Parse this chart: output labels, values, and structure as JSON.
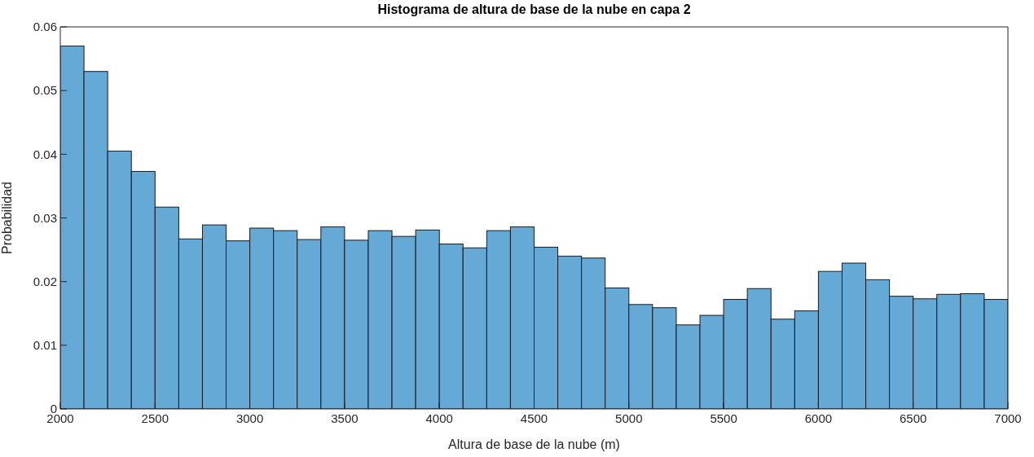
{
  "chart_data": {
    "type": "histogram",
    "title": "Histograma de altura de base de la nube en capa 2",
    "xlabel": "Altura de base de la nube (m)",
    "ylabel": "Probabilidad",
    "bins": [
      2000,
      2125,
      2250,
      2375,
      2500,
      2625,
      2750,
      2875,
      3000,
      3125,
      3250,
      3375,
      3500,
      3625,
      3750,
      3875,
      4000,
      4125,
      4250,
      4375,
      4500,
      4625,
      4750,
      4875,
      5000,
      5125,
      5250,
      5375,
      5500,
      5625,
      5750,
      5875,
      6000,
      6125,
      6250,
      6375,
      6500,
      6625,
      6750,
      6875,
      7000
    ],
    "values": [
      0.057,
      0.053,
      0.0405,
      0.0373,
      0.0317,
      0.0267,
      0.0289,
      0.0264,
      0.0284,
      0.028,
      0.0266,
      0.0286,
      0.0265,
      0.028,
      0.0271,
      0.0281,
      0.0259,
      0.0253,
      0.028,
      0.0286,
      0.0254,
      0.024,
      0.0237,
      0.019,
      0.0164,
      0.0159,
      0.0132,
      0.0147,
      0.0172,
      0.0189,
      0.0141,
      0.0154,
      0.0216,
      0.0229,
      0.0203,
      0.0177,
      0.0173,
      0.018,
      0.0181,
      0.0172
    ],
    "color": "#65a9d7",
    "xlim": [
      2000,
      7000
    ],
    "xticks": [
      2000,
      2500,
      3000,
      3500,
      4000,
      4500,
      5000,
      5500,
      6000,
      6500,
      7000
    ],
    "ylim": [
      0,
      0.06
    ],
    "yticks": [
      0,
      0.01,
      0.02,
      0.03,
      0.04,
      0.05,
      0.06
    ],
    "grid": false,
    "legend": false
  }
}
